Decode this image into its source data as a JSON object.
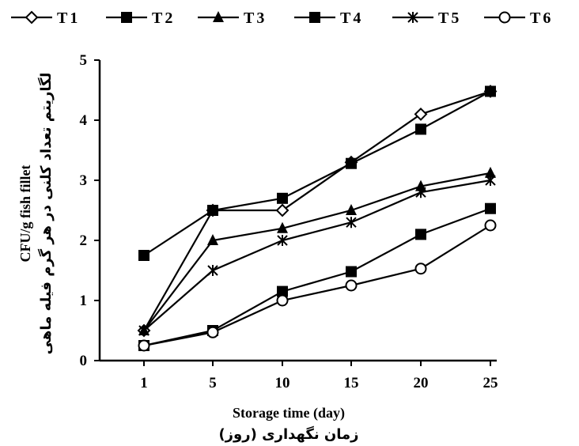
{
  "chart_data": {
    "type": "line",
    "categories": [
      "1",
      "5",
      "10",
      "15",
      "20",
      "25"
    ],
    "x": [
      1,
      5,
      10,
      15,
      20,
      25
    ],
    "series": [
      {
        "name": "T1",
        "marker": "diamond-open",
        "values": [
          0.5,
          2.5,
          2.5,
          3.3,
          4.1,
          4.48
        ]
      },
      {
        "name": "T2",
        "marker": "square-filled",
        "values": [
          1.75,
          2.5,
          2.7,
          3.28,
          3.85,
          4.48
        ]
      },
      {
        "name": "T3",
        "marker": "triangle-filled",
        "values": [
          0.5,
          2.0,
          2.2,
          2.5,
          2.9,
          3.12
        ]
      },
      {
        "name": "T4",
        "marker": "square-filled",
        "values": [
          0.25,
          0.5,
          1.15,
          1.48,
          2.1,
          2.53
        ]
      },
      {
        "name": "T5",
        "marker": "x-cross",
        "values": [
          0.5,
          1.5,
          2.0,
          2.3,
          2.8,
          3.0
        ]
      },
      {
        "name": "T6",
        "marker": "circle-open",
        "values": [
          0.25,
          0.47,
          1.0,
          1.25,
          1.53,
          2.25
        ]
      }
    ],
    "ylim": [
      0,
      5
    ],
    "yticks": [
      "0",
      "1",
      "2",
      "3",
      "4",
      "5"
    ],
    "xlabel": "Storage time (day)",
    "xlabel_fa": "زمان نگهداری (روز)",
    "ylabel": "CFU/g fish fillet",
    "ylabel_fa": "لگاریتم تعداد کلنی در هر گرم فیله ماهی",
    "grid": false,
    "legend_position": "top"
  }
}
